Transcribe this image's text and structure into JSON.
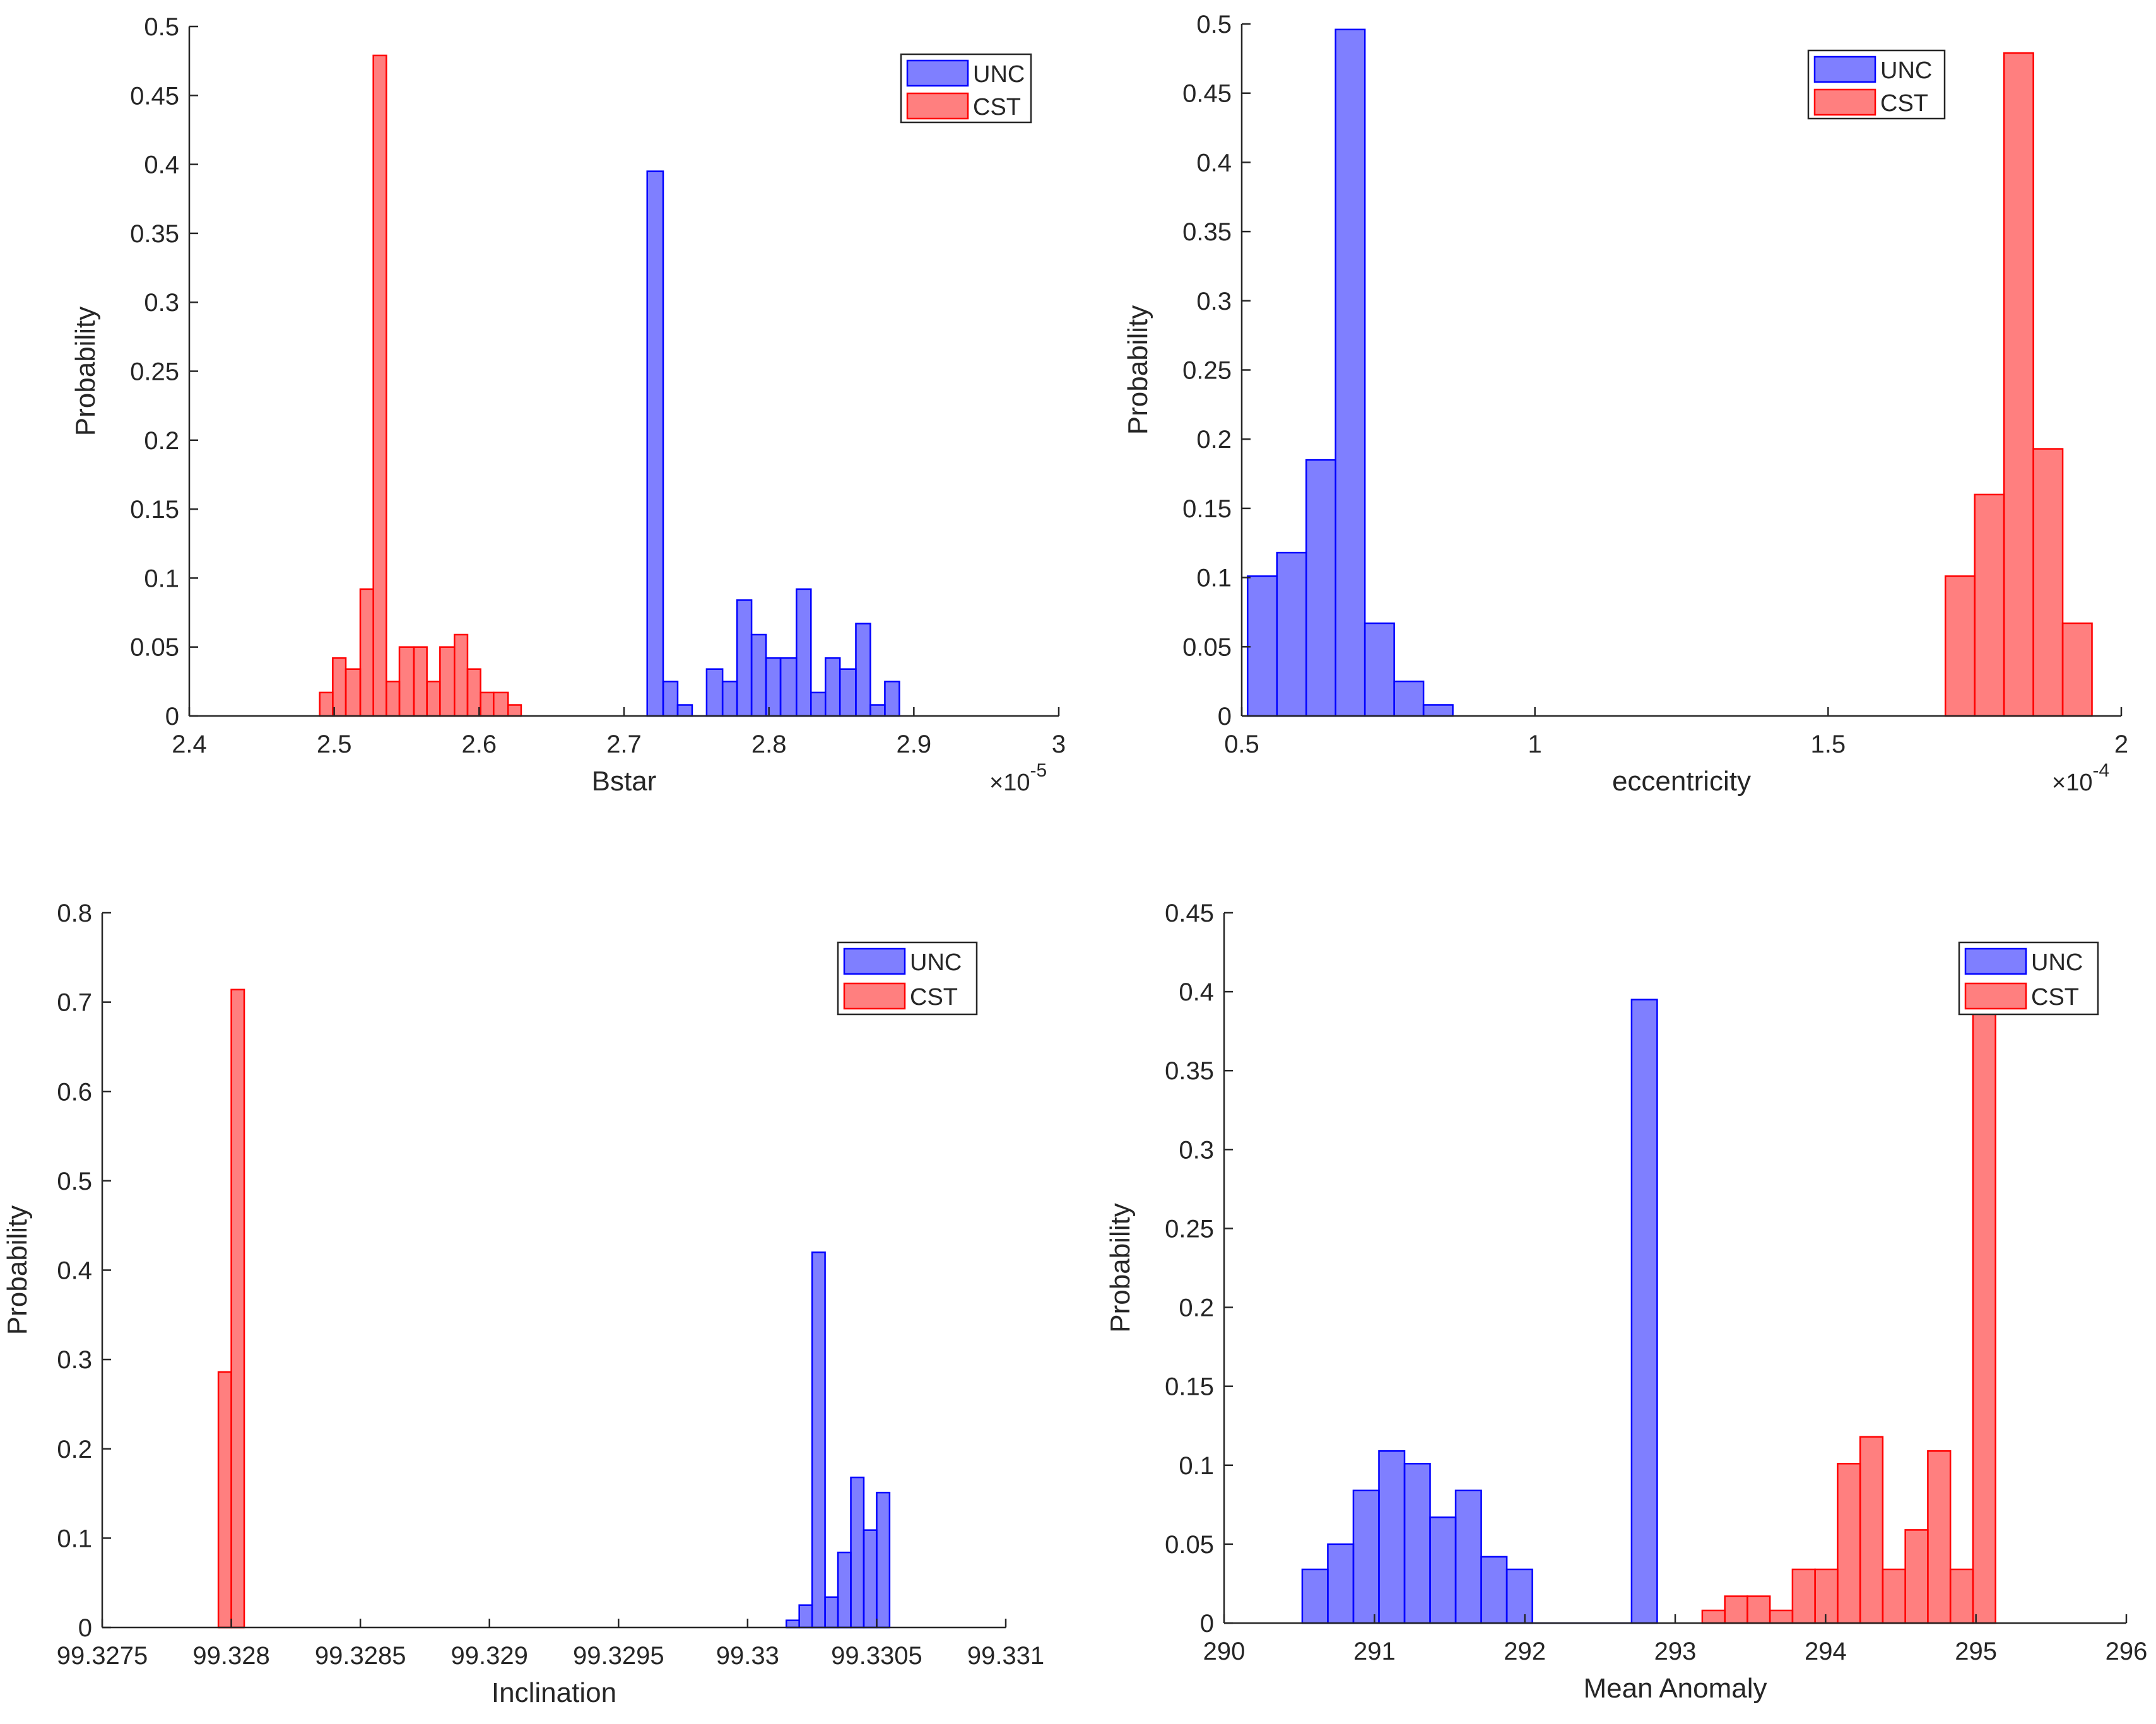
{
  "chart_data": [
    {
      "type": "histogram",
      "name": "bstar",
      "xlabel": "Bstar",
      "ylabel": "Probability",
      "x_exponent": "×10",
      "x_exponent_power": "-5",
      "xlim": [
        2.4,
        3.0
      ],
      "ylim": [
        0,
        0.5
      ],
      "xticks": [
        2.4,
        2.5,
        2.6,
        2.7,
        2.8,
        2.9,
        3.0
      ],
      "xtick_labels": [
        "2.4",
        "2.5",
        "2.6",
        "2.7",
        "2.8",
        "2.9",
        "3"
      ],
      "yticks": [
        0,
        0.05,
        0.1,
        0.15,
        0.2,
        0.25,
        0.3,
        0.35,
        0.4,
        0.45,
        0.5
      ],
      "ytick_labels": [
        "0",
        "0.05",
        "0.1",
        "0.15",
        "0.2",
        "0.25",
        "0.3",
        "0.35",
        "0.4",
        "0.45",
        "0.5"
      ],
      "legend": {
        "position": "top-right",
        "entries": [
          "UNC",
          "CST"
        ]
      },
      "series": [
        {
          "name": "UNC",
          "color": "#0000ff",
          "bins": [
            [
              2.716,
              2.727,
              0.395
            ],
            [
              2.727,
              2.737,
              0.025
            ],
            [
              2.737,
              2.747,
              0.008
            ],
            [
              2.747,
              2.757,
              0.0
            ],
            [
              2.757,
              2.768,
              0.034
            ],
            [
              2.768,
              2.778,
              0.025
            ],
            [
              2.778,
              2.788,
              0.084
            ],
            [
              2.788,
              2.798,
              0.059
            ],
            [
              2.798,
              2.808,
              0.042
            ],
            [
              2.808,
              2.819,
              0.042
            ],
            [
              2.819,
              2.829,
              0.092
            ],
            [
              2.829,
              2.839,
              0.017
            ],
            [
              2.839,
              2.849,
              0.042
            ],
            [
              2.849,
              2.86,
              0.034
            ],
            [
              2.86,
              2.87,
              0.067
            ],
            [
              2.87,
              2.88,
              0.008
            ],
            [
              2.88,
              2.89,
              0.025
            ]
          ]
        },
        {
          "name": "CST",
          "color": "#ff0000",
          "bins": [
            [
              2.49,
              2.499,
              0.017
            ],
            [
              2.499,
              2.508,
              0.042
            ],
            [
              2.508,
              2.518,
              0.034
            ],
            [
              2.518,
              2.527,
              0.092
            ],
            [
              2.527,
              2.536,
              0.479
            ],
            [
              2.536,
              2.545,
              0.025
            ],
            [
              2.545,
              2.555,
              0.05
            ],
            [
              2.555,
              2.564,
              0.05
            ],
            [
              2.564,
              2.573,
              0.025
            ],
            [
              2.573,
              2.583,
              0.05
            ],
            [
              2.583,
              2.592,
              0.059
            ],
            [
              2.592,
              2.601,
              0.034
            ],
            [
              2.601,
              2.61,
              0.017
            ],
            [
              2.61,
              2.62,
              0.017
            ],
            [
              2.62,
              2.629,
              0.008
            ]
          ]
        }
      ]
    },
    {
      "type": "histogram",
      "name": "eccentricity",
      "xlabel": "eccentricity",
      "ylabel": "Probability",
      "x_exponent": "×10",
      "x_exponent_power": "-4",
      "xlim": [
        0.5,
        2.0
      ],
      "ylim": [
        0,
        0.5
      ],
      "xticks": [
        0.5,
        1.0,
        1.5,
        2.0
      ],
      "xtick_labels": [
        "0.5",
        "1",
        "1.5",
        "2"
      ],
      "yticks": [
        0,
        0.05,
        0.1,
        0.15,
        0.2,
        0.25,
        0.3,
        0.35,
        0.4,
        0.45,
        0.5
      ],
      "ytick_labels": [
        "0",
        "0.05",
        "0.1",
        "0.15",
        "0.2",
        "0.25",
        "0.3",
        "0.35",
        "0.4",
        "0.45",
        "0.5"
      ],
      "legend": {
        "position": "top-right",
        "entries": [
          "UNC",
          "CST"
        ]
      },
      "series": [
        {
          "name": "UNC",
          "color": "#0000ff",
          "bins": [
            [
              0.51,
              0.56,
              0.101
            ],
            [
              0.56,
              0.61,
              0.118
            ],
            [
              0.61,
              0.66,
              0.185
            ],
            [
              0.66,
              0.71,
              0.496
            ],
            [
              0.71,
              0.76,
              0.067
            ],
            [
              0.76,
              0.81,
              0.025
            ],
            [
              0.81,
              0.86,
              0.008
            ]
          ]
        },
        {
          "name": "CST",
          "color": "#ff0000",
          "bins": [
            [
              1.7,
              1.75,
              0.101
            ],
            [
              1.75,
              1.8,
              0.16
            ],
            [
              1.8,
              1.85,
              0.479
            ],
            [
              1.85,
              1.9,
              0.193
            ],
            [
              1.9,
              1.95,
              0.067
            ]
          ]
        }
      ]
    },
    {
      "type": "histogram",
      "name": "inclination",
      "xlabel": "Inclination",
      "ylabel": "Probability",
      "xlim": [
        99.3275,
        99.331
      ],
      "ylim": [
        0,
        0.8
      ],
      "xticks": [
        99.3275,
        99.328,
        99.3285,
        99.329,
        99.3295,
        99.33,
        99.3305,
        99.331
      ],
      "xtick_labels": [
        "99.3275",
        "99.328",
        "99.3285",
        "99.329",
        "99.3295",
        "99.33",
        "99.3305",
        "99.331"
      ],
      "yticks": [
        0,
        0.1,
        0.2,
        0.3,
        0.4,
        0.5,
        0.6,
        0.7,
        0.8
      ],
      "ytick_labels": [
        "0",
        "0.1",
        "0.2",
        "0.3",
        "0.4",
        "0.5",
        "0.6",
        "0.7",
        "0.8"
      ],
      "legend": {
        "position": "top-right",
        "entries": [
          "UNC",
          "CST"
        ]
      },
      "series": [
        {
          "name": "UNC",
          "color": "#0000ff",
          "bins": [
            [
              99.33015,
              99.3302,
              0.008
            ],
            [
              99.3302,
              99.33025,
              0.025
            ],
            [
              99.33025,
              99.3303,
              0.42
            ],
            [
              99.3303,
              99.33035,
              0.034
            ],
            [
              99.33035,
              99.3304,
              0.084
            ],
            [
              99.3304,
              99.33045,
              0.168
            ],
            [
              99.33045,
              99.3305,
              0.109
            ],
            [
              99.3305,
              99.33055,
              0.151
            ]
          ]
        },
        {
          "name": "CST",
          "color": "#ff0000",
          "bins": [
            [
              99.32795,
              99.328,
              0.286
            ],
            [
              99.328,
              99.32805,
              0.714
            ]
          ]
        }
      ]
    },
    {
      "type": "histogram",
      "name": "mean-anomaly",
      "xlabel": "Mean Anomaly",
      "ylabel": "Probability",
      "xlim": [
        290,
        296
      ],
      "ylim": [
        0,
        0.45
      ],
      "xticks": [
        290,
        291,
        292,
        293,
        294,
        295,
        296
      ],
      "xtick_labels": [
        "290",
        "291",
        "292",
        "293",
        "294",
        "295",
        "296"
      ],
      "yticks": [
        0,
        0.05,
        0.1,
        0.15,
        0.2,
        0.25,
        0.3,
        0.35,
        0.4,
        0.45
      ],
      "ytick_labels": [
        "0",
        "0.05",
        "0.1",
        "0.15",
        "0.2",
        "0.25",
        "0.3",
        "0.35",
        "0.4",
        "0.45"
      ],
      "legend": {
        "position": "top-right",
        "entries": [
          "UNC",
          "CST"
        ]
      },
      "series": [
        {
          "name": "UNC",
          "color": "#0000ff",
          "bins": [
            [
              290.52,
              290.69,
              0.034
            ],
            [
              290.69,
              290.86,
              0.05
            ],
            [
              290.86,
              291.03,
              0.084
            ],
            [
              291.03,
              291.2,
              0.109
            ],
            [
              291.2,
              291.37,
              0.101
            ],
            [
              291.37,
              291.54,
              0.067
            ],
            [
              291.54,
              291.71,
              0.084
            ],
            [
              291.71,
              291.88,
              0.042
            ],
            [
              291.88,
              292.05,
              0.034
            ],
            [
              292.71,
              292.88,
              0.395
            ]
          ]
        },
        {
          "name": "CST",
          "color": "#ff0000",
          "bins": [
            [
              293.18,
              293.33,
              0.008
            ],
            [
              293.33,
              293.48,
              0.017
            ],
            [
              293.48,
              293.63,
              0.017
            ],
            [
              293.63,
              293.78,
              0.008
            ],
            [
              293.78,
              293.93,
              0.034
            ],
            [
              293.93,
              294.08,
              0.034
            ],
            [
              294.08,
              294.23,
              0.101
            ],
            [
              294.23,
              294.38,
              0.118
            ],
            [
              294.38,
              294.53,
              0.034
            ],
            [
              294.53,
              294.68,
              0.059
            ],
            [
              294.68,
              294.83,
              0.109
            ],
            [
              294.83,
              294.98,
              0.034
            ],
            [
              294.98,
              295.13,
              0.395
            ]
          ]
        }
      ]
    }
  ]
}
